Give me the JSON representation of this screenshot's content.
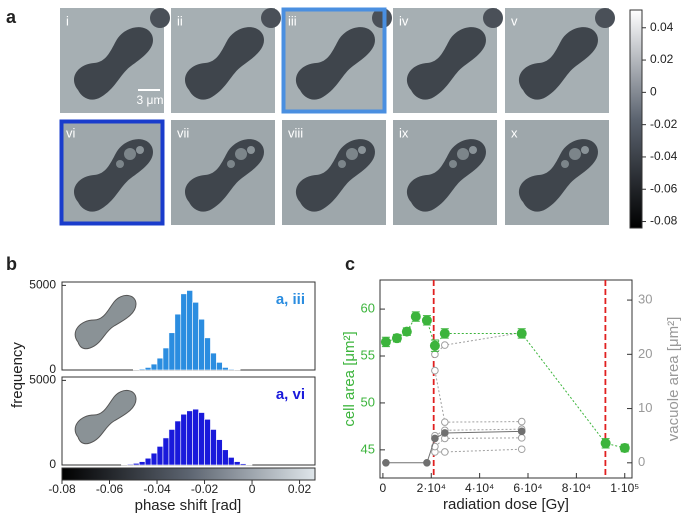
{
  "panel_a": {
    "label": "a",
    "scale_bar": "3 μm",
    "frames": [
      {
        "label": "i"
      },
      {
        "label": "ii"
      },
      {
        "label": "iii",
        "border": "#4a8fe0"
      },
      {
        "label": "iv"
      },
      {
        "label": "v"
      },
      {
        "label": "vi",
        "border": "#1a3ccc"
      },
      {
        "label": "vii"
      },
      {
        "label": "viii"
      },
      {
        "label": "ix"
      },
      {
        "label": "x"
      }
    ],
    "colorbar": {
      "lim": [
        -0.084,
        0.051
      ],
      "ticks": [
        0.04,
        0.02,
        0,
        -0.02,
        -0.04,
        -0.06,
        -0.08
      ]
    }
  },
  "panel_b": {
    "label": "b",
    "type": "histogram",
    "ylabel": "frequency",
    "xlabel": "phase shift [rad]",
    "xlim": [
      -0.08,
      0.0265
    ],
    "xticks": [
      -0.08,
      -0.06,
      -0.04,
      -0.02,
      0,
      0.02
    ],
    "ylim": [
      0,
      5200
    ],
    "yticks": [
      0,
      5000
    ],
    "histograms": [
      {
        "label": "a, iii",
        "color": "#2b8de0",
        "bins": [
          -0.05,
          -0.0475,
          -0.045,
          -0.0425,
          -0.04,
          -0.0375,
          -0.035,
          -0.0325,
          -0.03,
          -0.0275,
          -0.025,
          -0.0225,
          -0.02,
          -0.0175,
          -0.015,
          -0.0125,
          -0.01,
          -0.0075,
          -0.005
        ],
        "counts": [
          20,
          60,
          150,
          350,
          700,
          1300,
          2200,
          3300,
          4500,
          4700,
          4000,
          3000,
          1900,
          1000,
          450,
          150,
          50,
          15
        ]
      },
      {
        "label": "a, vi",
        "color": "#1a1adb",
        "bins": [
          -0.055,
          -0.0525,
          -0.05,
          -0.0475,
          -0.045,
          -0.0425,
          -0.04,
          -0.0375,
          -0.035,
          -0.0325,
          -0.03,
          -0.0275,
          -0.025,
          -0.0225,
          -0.02,
          -0.0175,
          -0.015,
          -0.0125,
          -0.01,
          -0.0075,
          -0.005,
          -0.0025,
          0
        ],
        "counts": [
          20,
          50,
          100,
          200,
          400,
          700,
          1100,
          1600,
          2100,
          2600,
          3000,
          3200,
          3300,
          3100,
          2700,
          2100,
          1500,
          900,
          450,
          200,
          80,
          20
        ]
      }
    ]
  },
  "panel_c": {
    "label": "c",
    "type": "scatter",
    "xlabel": "radiation dose [Gy]",
    "ylabel": "cell area [μm²]",
    "y2label": "vacuole area [μm²]",
    "xlim": [
      -1200,
      103000
    ],
    "xticks": [
      0,
      {
        "value": 20000,
        "label": "2·10⁴"
      },
      {
        "value": 40000,
        "label": "4·10⁴"
      },
      {
        "value": 60000,
        "label": "6·10⁴"
      },
      {
        "value": 80000,
        "label": "8·10⁴"
      },
      {
        "value": 100000,
        "label": "1·10⁵"
      }
    ],
    "ylim": [
      42,
      63.1
    ],
    "yticks": [
      45,
      50,
      55,
      60
    ],
    "y2lim": [
      -2.8,
      33.7
    ],
    "y2ticks": [
      0,
      10,
      20,
      30
    ],
    "reference_lines": [
      21000,
      92000
    ],
    "reference_color": "#e02020",
    "series": [
      {
        "axis": "y",
        "color": "#3cb43c",
        "marker": "filled",
        "x": [
          1240,
          5800,
          9900,
          13600,
          18200,
          21500,
          25600,
          57400,
          92100,
          100000
        ],
        "values": [
          56.5,
          56.9,
          57.6,
          59.2,
          58.8,
          56.1,
          57.4,
          57.4,
          45.7,
          45.2
        ],
        "errors": [
          0.5,
          0.4,
          0.4,
          0.5,
          0.5,
          0.6,
          0.5,
          0.5,
          0.5,
          0.4
        ]
      },
      {
        "axis": "y2",
        "color": "#707070",
        "marker": "filled",
        "x": [
          1240,
          18200,
          21500,
          25600,
          57400
        ],
        "values": [
          0,
          0,
          4.5,
          5.5,
          5.8
        ]
      },
      {
        "axis": "y2",
        "color": "#a0a0a0",
        "marker": "open",
        "x": [
          21500,
          25600,
          57400
        ],
        "values": [
          20,
          21.7,
          24
        ]
      },
      {
        "axis": "y2",
        "color": "#a0a0a0",
        "marker": "open",
        "x": [
          21500,
          25600,
          57400
        ],
        "values": [
          17,
          7.5,
          7.6
        ]
      },
      {
        "axis": "y2",
        "color": "#a0a0a0",
        "marker": "open",
        "x": [
          21500,
          25600,
          57400
        ],
        "values": [
          5,
          6,
          6.2
        ]
      },
      {
        "axis": "y2",
        "color": "#a0a0a0",
        "marker": "open",
        "x": [
          21500,
          25600,
          57400
        ],
        "values": [
          3,
          4.5,
          4.6
        ]
      },
      {
        "axis": "y2",
        "color": "#a0a0a0",
        "marker": "open",
        "x": [
          21500,
          25600,
          57400
        ],
        "values": [
          2,
          2,
          2.5
        ]
      }
    ]
  }
}
